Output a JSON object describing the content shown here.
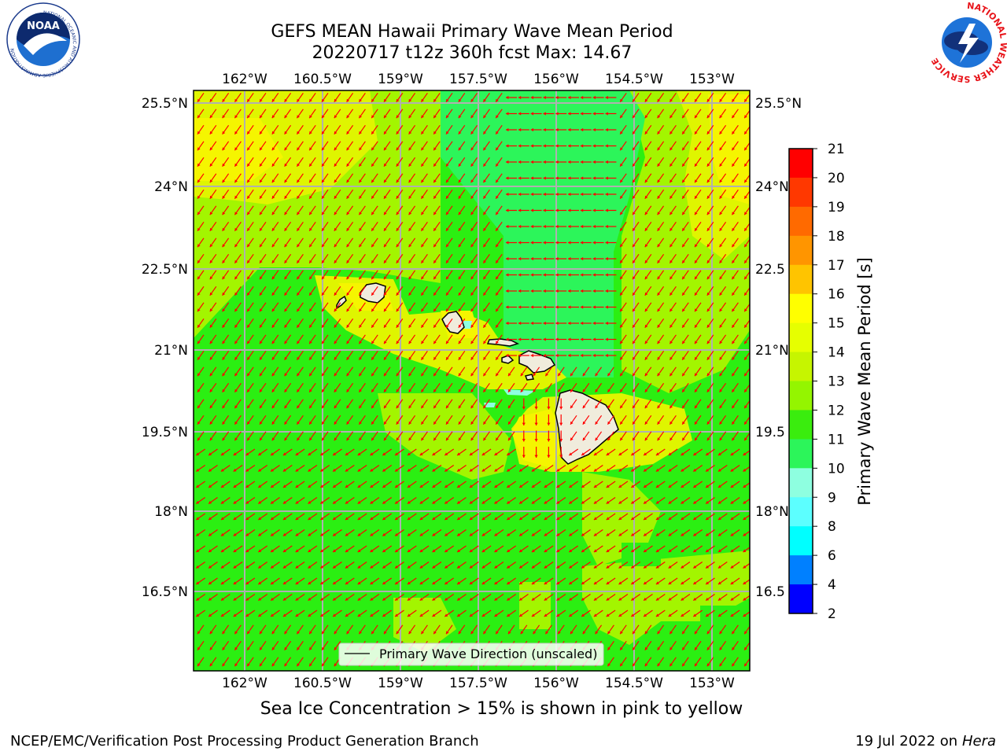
{
  "title": {
    "line1": "GEFS MEAN Hawaii Primary Wave Mean Period",
    "line2": "20220717 t12z 360h fcst   Max: 14.67"
  },
  "map": {
    "lon_ticks": [
      "162°W",
      "160.5°W",
      "159°W",
      "157.5°W",
      "156°W",
      "154.5°W",
      "153°W"
    ],
    "lat_ticks": [
      "25.5°N",
      "24°N",
      "22.5°N",
      "21°N",
      "19.5°N",
      "18°N",
      "16.5°N"
    ],
    "lat_ticks_right": [
      "25.5°N",
      "24°N",
      "22.5",
      "21°N",
      "19.5",
      "18°N",
      "16.5"
    ],
    "legend_label": "Primary Wave Direction (unscaled)",
    "colors": {
      "green": "#2bef12",
      "light_green": "#2cf55a",
      "yellow_green": "#a3f500",
      "lime_yellow": "#dff500",
      "yellow": "#f5f500",
      "aqua": "#8effe0",
      "land": "#f0ecdc",
      "arrow": "#ff0000",
      "grid": "#b0b0b0"
    }
  },
  "colorbar": {
    "title": "Primary Wave Mean Period [s]",
    "ticks": [
      "21",
      "20",
      "19",
      "18",
      "17",
      "16",
      "15",
      "14",
      "13",
      "12",
      "11",
      "10",
      "9",
      "8",
      "6",
      "4",
      "2"
    ],
    "colors": [
      "#ff0000",
      "#ff3800",
      "#ff6a00",
      "#ff9500",
      "#ffc400",
      "#ffff00",
      "#e6ff00",
      "#c6f500",
      "#94f500",
      "#3aed0e",
      "#2cf55a",
      "#8effe0",
      "#5cffff",
      "#00ffff",
      "#0080ff",
      "#0000ff"
    ]
  },
  "footer": {
    "note": "Sea Ice Concentration > 15% is shown in pink to yellow",
    "credit_left": "NCEP/EMC/Verification Post Processing Product Generation Branch",
    "credit_right_date": "19 Jul 2022 on ",
    "credit_right_host": "Hera"
  },
  "logos": {
    "noaa": "NOAA",
    "noaa_ring": "NATIONAL OCEANIC AND ATMOSPHERIC ADMINISTRATION",
    "noaa_ring_bottom": "U.S. DEPARTMENT OF COMMERCE",
    "nws_ring": "NATIONAL WEATHER SERVICE"
  }
}
